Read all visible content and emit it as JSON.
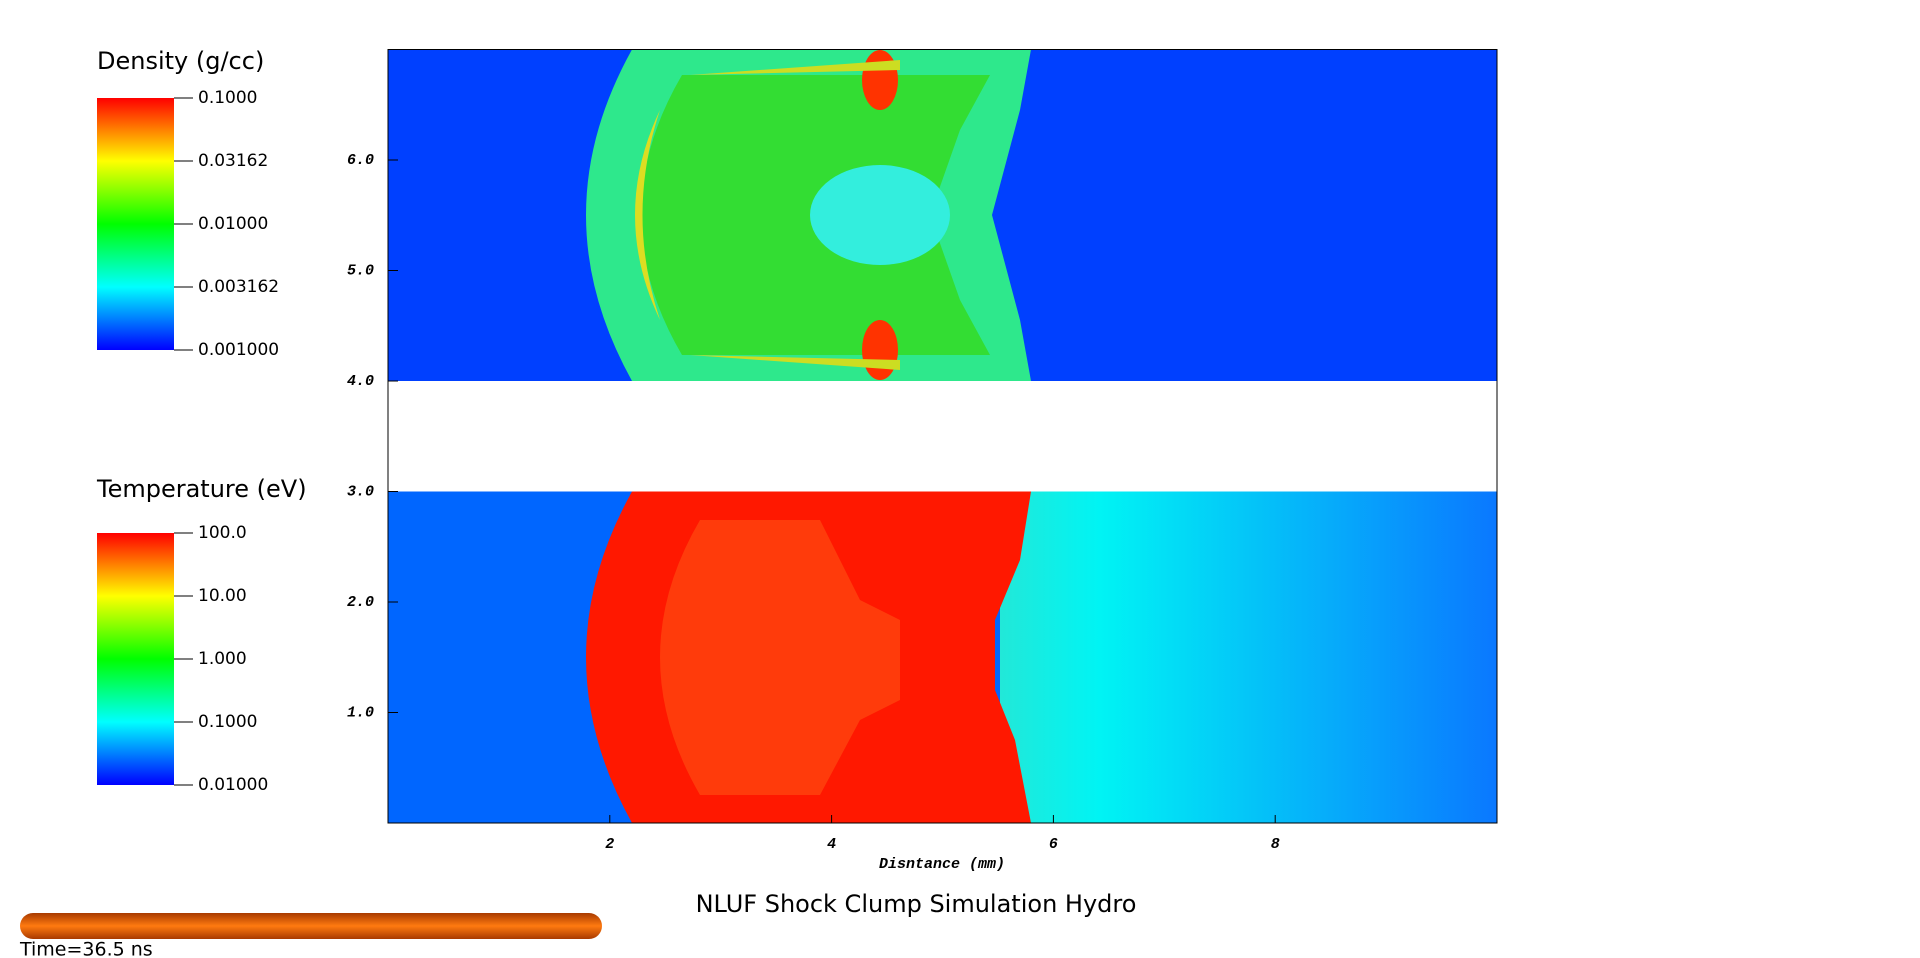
{
  "chart_data": {
    "type": "pseudocolor",
    "title": "NLUF Shock Clump Simulation Hydro",
    "xlabel": "Disntance (mm)",
    "xlim": [
      0,
      10
    ],
    "xticks": [
      2,
      4,
      6,
      8
    ],
    "ylim": [
      0,
      7
    ],
    "yticks": [
      {
        "value": 1,
        "label": "1.0"
      },
      {
        "value": 2,
        "label": "2.0"
      },
      {
        "value": 3,
        "label": "3.0"
      },
      {
        "value": 4,
        "label": "4.0"
      },
      {
        "value": 5,
        "label": "5.0"
      },
      {
        "value": 6,
        "label": "6.0"
      }
    ],
    "colorbars": [
      {
        "title": "Density (g/cc)",
        "clim": [
          0.001,
          0.1
        ],
        "ticks": [
          {
            "value": 0.1,
            "label": "0.1000"
          },
          {
            "value": 0.03162,
            "label": "0.03162"
          },
          {
            "value": 0.01,
            "label": "0.01000"
          },
          {
            "value": 0.003162,
            "label": "0.003162"
          },
          {
            "value": 0.001,
            "label": "0.001000"
          }
        ]
      },
      {
        "title": "Temperature (eV)",
        "clim": [
          0.01,
          100
        ],
        "ticks": [
          {
            "value": 100,
            "label": "100.0"
          },
          {
            "value": 10,
            "label": "10.00"
          },
          {
            "value": 1,
            "label": "1.000"
          },
          {
            "value": 0.1,
            "label": "0.1000"
          },
          {
            "value": 0.01,
            "label": "0.01000"
          }
        ]
      }
    ],
    "time": "Time=36.5 ns"
  }
}
